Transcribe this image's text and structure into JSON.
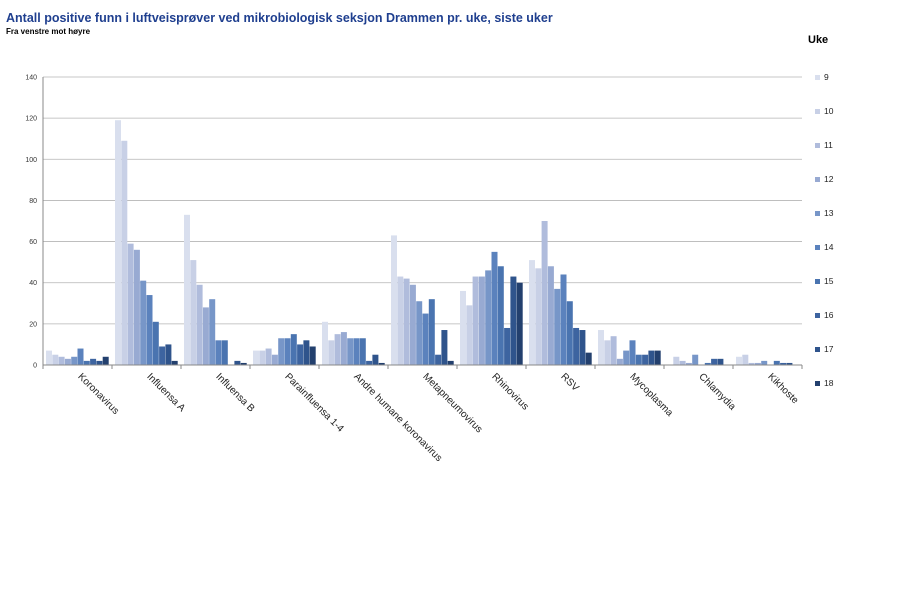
{
  "chart_data": {
    "type": "bar",
    "title": "Antall positive funn i luftveisprøver ved mikrobiologisk seksjon Drammen pr. uke, siste uker",
    "subtitle": "Fra venstre mot høyre",
    "legend_title": "Uke",
    "legend_placement": "right",
    "ylim": [
      0,
      140
    ],
    "yticks": [
      0,
      20,
      40,
      60,
      80,
      100,
      120,
      140
    ],
    "grid": true,
    "categories": [
      "Koronavirus",
      "Influensa A",
      "Influensa B",
      "Parainfluensa 1-4",
      "Andre humane koronavirus",
      "Metapneumovirus",
      "Rhinovirus",
      "RSV",
      "Mycoplasma",
      "Chlamydia",
      "Kikhoste"
    ],
    "series": [
      {
        "name": "9",
        "color": "#d9dfee",
        "values": [
          7,
          119,
          73,
          7,
          21,
          63,
          36,
          51,
          17,
          0,
          4
        ]
      },
      {
        "name": "10",
        "color": "#c8d0e6",
        "values": [
          5,
          109,
          51,
          7,
          12,
          43,
          29,
          47,
          12,
          4,
          5
        ]
      },
      {
        "name": "11",
        "color": "#b0bcdc",
        "values": [
          4,
          59,
          39,
          8,
          15,
          42,
          43,
          70,
          14,
          2,
          1
        ]
      },
      {
        "name": "12",
        "color": "#98aad2",
        "values": [
          3,
          56,
          28,
          5,
          16,
          39,
          43,
          48,
          3,
          1,
          1
        ]
      },
      {
        "name": "13",
        "color": "#7796c8",
        "values": [
          4,
          41,
          32,
          13,
          13,
          31,
          46,
          37,
          7,
          5,
          2
        ]
      },
      {
        "name": "14",
        "color": "#5b82bd",
        "values": [
          8,
          34,
          12,
          13,
          13,
          25,
          55,
          44,
          12,
          0,
          0
        ]
      },
      {
        "name": "15",
        "color": "#4a74b0",
        "values": [
          2,
          21,
          12,
          15,
          13,
          32,
          48,
          31,
          5,
          1,
          2
        ]
      },
      {
        "name": "16",
        "color": "#3d64a0",
        "values": [
          3,
          9,
          0,
          10,
          2,
          5,
          18,
          18,
          5,
          3,
          1
        ]
      },
      {
        "name": "17",
        "color": "#2f548c",
        "values": [
          2,
          10,
          2,
          12,
          5,
          17,
          43,
          17,
          7,
          3,
          1
        ]
      },
      {
        "name": "18",
        "color": "#23406e",
        "values": [
          4,
          2,
          1,
          9,
          1,
          2,
          40,
          6,
          7,
          0,
          0
        ]
      }
    ]
  }
}
